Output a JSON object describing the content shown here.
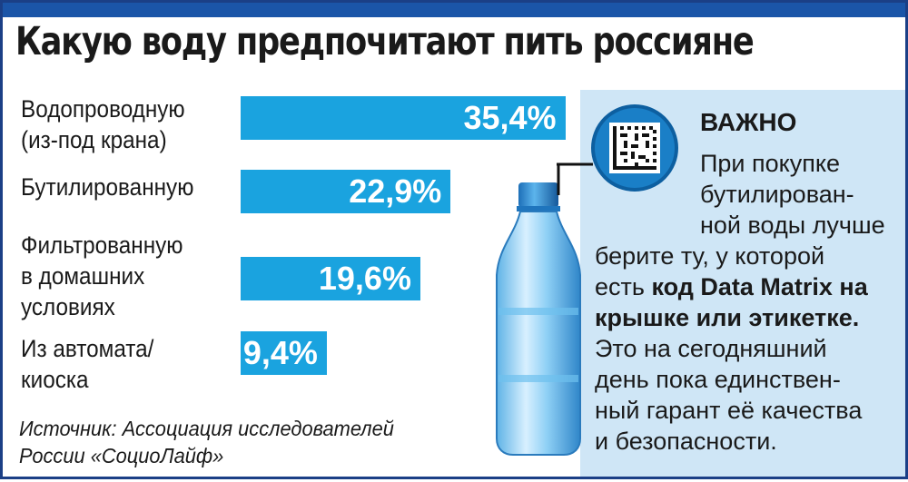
{
  "title": "Какую воду предпочитают пить россияне",
  "chart_data": {
    "type": "bar",
    "orientation": "horizontal",
    "title": "Какую воду предпочитают пить россияне",
    "categories": [
      [
        "Водопроводную",
        "(из-под крана)"
      ],
      [
        "Бутилированную"
      ],
      [
        "Фильтрованную",
        "в домашних",
        "условиях"
      ],
      [
        "Из автомата/",
        "киоска"
      ]
    ],
    "values": [
      35.4,
      22.9,
      19.6,
      9.4
    ],
    "value_labels": [
      "35,4%",
      "22,9%",
      "19,6%",
      "9,4%"
    ],
    "unit": "%",
    "bar_color": "#1aa3df",
    "xlabel": "",
    "ylabel": ""
  },
  "source": {
    "line1": "Источник: Ассоциация исследователей",
    "line2": "России «СоциоЛайф»"
  },
  "note": {
    "heading": "ВАЖНО",
    "text1": "При покупке",
    "text2": "бутилирован-",
    "text3": "ной воды лучше",
    "text4": "берите ту, у которой",
    "text5a": "есть ",
    "text5b": "код Data Matrix на",
    "text6": "крышке или этикетке.",
    "text7": "Это на сегодняшний",
    "text8": "день пока единствен-",
    "text9": "ный гарант её качества",
    "text10": "и безопасности."
  },
  "icons": [
    "data-matrix-icon",
    "water-bottle-icon"
  ],
  "colors": {
    "accent": "#1aa3df",
    "panel": "#cfe6f6",
    "header": "#1b55a8"
  }
}
